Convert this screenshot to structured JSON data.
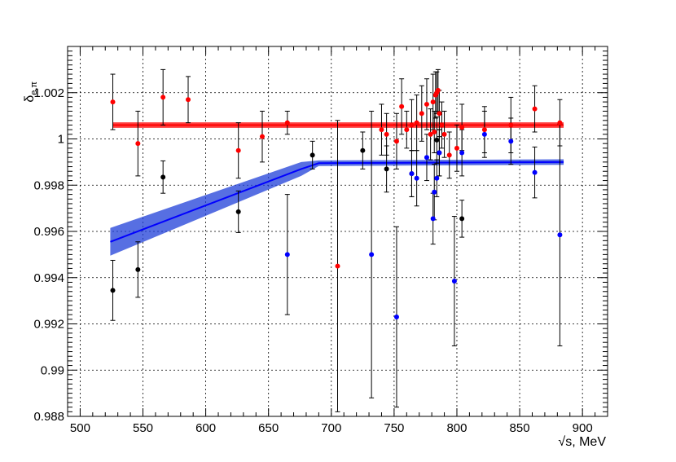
{
  "chart_data": {
    "type": "scatter",
    "title": "",
    "xlabel": "√s, MeV",
    "ylabel": "δe,π",
    "ylabel_main": "δ",
    "ylabel_sub": "e,π",
    "xlim": [
      490,
      920
    ],
    "ylim": [
      0.988,
      1.004
    ],
    "x_ticks": [
      500,
      550,
      600,
      650,
      700,
      750,
      800,
      850,
      900
    ],
    "x_tick_labels": [
      "500",
      "550",
      "600",
      "650",
      "700",
      "750",
      "800",
      "850",
      "900"
    ],
    "y_ticks": [
      0.988,
      0.99,
      0.992,
      0.994,
      0.996,
      0.998,
      1.0,
      1.002
    ],
    "y_tick_labels": [
      "0.988",
      "0.99",
      "0.992",
      "0.994",
      "0.996",
      "0.998",
      "1",
      "1.002"
    ],
    "grid": true,
    "colors": {
      "red": "#ff0000",
      "blue": "#0000ff",
      "black": "#000000",
      "band_blue": "#1f3fd8"
    },
    "fits": [
      {
        "color": "red",
        "x": [
          526,
          885
        ],
        "y": [
          1.0006,
          1.0006
        ],
        "band": 0.00012
      },
      {
        "color": "blue",
        "x": [
          524,
          676,
          690,
          885
        ],
        "y": [
          0.99555,
          0.9987,
          0.99895,
          0.999
        ],
        "band": [
          0.0006,
          0.0003,
          0.00012,
          0.00012
        ]
      }
    ],
    "series": [
      {
        "color": "red",
        "points": [
          {
            "x": 526,
            "y": 1.0016,
            "err": 0.0012
          },
          {
            "x": 546,
            "y": 0.9998,
            "err": 0.0014
          },
          {
            "x": 566,
            "y": 1.0018,
            "err": 0.0012
          },
          {
            "x": 586,
            "y": 1.0017,
            "err": 0.001
          },
          {
            "x": 626,
            "y": 0.9995,
            "err": 0.0012
          },
          {
            "x": 645,
            "y": 1.0001,
            "err": 0.0011
          },
          {
            "x": 665,
            "y": 1.0007,
            "err": 0.0005
          },
          {
            "x": 705,
            "y": 0.9945,
            "err": 0.0063
          },
          {
            "x": 740,
            "y": 1.0004,
            "err": 0.0011
          },
          {
            "x": 744,
            "y": 1.0002,
            "err": 0.0009
          },
          {
            "x": 752,
            "y": 0.9999,
            "err": 0.0012
          },
          {
            "x": 756,
            "y": 1.0014,
            "err": 0.0012
          },
          {
            "x": 760,
            "y": 1.0004,
            "err": 0.0008
          },
          {
            "x": 764,
            "y": 1.0006,
            "err": 0.0011
          },
          {
            "x": 768,
            "y": 1.0007,
            "err": 0.0012
          },
          {
            "x": 772,
            "y": 1.0011,
            "err": 0.0012
          },
          {
            "x": 776,
            "y": 1.0015,
            "err": 0.0011
          },
          {
            "x": 779,
            "y": 1.0002,
            "err": 0.0011
          },
          {
            "x": 781,
            "y": 1.0016,
            "err": 0.0012
          },
          {
            "x": 782,
            "y": 1.0003,
            "err": 0.0009
          },
          {
            "x": 783,
            "y": 1.0019,
            "err": 0.001
          },
          {
            "x": 784,
            "y": 1.002,
            "err": 0.0009
          },
          {
            "x": 785,
            "y": 1.0021,
            "err": 0.0009
          },
          {
            "x": 786,
            "y": 1.0011,
            "err": 0.001
          },
          {
            "x": 788,
            "y": 1.0006,
            "err": 0.001
          },
          {
            "x": 790,
            "y": 1.0002,
            "err": 0.001
          },
          {
            "x": 794,
            "y": 0.9993,
            "err": 0.001
          },
          {
            "x": 800,
            "y": 0.9996,
            "err": 0.001
          },
          {
            "x": 804,
            "y": 1.0005,
            "err": 0.001
          },
          {
            "x": 822,
            "y": 1.0004,
            "err": 0.001
          },
          {
            "x": 843,
            "y": 1.0006,
            "err": 0.0012
          },
          {
            "x": 862,
            "y": 1.0013,
            "err": 0.001
          },
          {
            "x": 882,
            "y": 1.0007,
            "err": 0.001
          }
        ]
      },
      {
        "color": "black",
        "points": [
          {
            "x": 526,
            "y": 0.99345,
            "err": 0.0013
          },
          {
            "x": 546,
            "y": 0.99435,
            "err": 0.0012
          },
          {
            "x": 566,
            "y": 0.99835,
            "err": 0.0007
          },
          {
            "x": 626,
            "y": 0.99685,
            "err": 0.0009
          },
          {
            "x": 685,
            "y": 0.9993,
            "err": 0.0006
          },
          {
            "x": 725,
            "y": 0.9995,
            "err": 0.0008
          },
          {
            "x": 744,
            "y": 0.9987,
            "err": 0.001
          },
          {
            "x": 764,
            "y": 0.9985,
            "err": 0.001
          },
          {
            "x": 784,
            "y": 0.99995,
            "err": 0.001
          },
          {
            "x": 786,
            "y": 0.9994,
            "err": 0.001
          },
          {
            "x": 804,
            "y": 0.99655,
            "err": 0.0008
          }
        ]
      },
      {
        "color": "blue",
        "points": [
          {
            "x": 665,
            "y": 0.995,
            "err": 0.0026
          },
          {
            "x": 732,
            "y": 0.995,
            "err": 0.0062
          },
          {
            "x": 752,
            "y": 0.9923,
            "err": 0.0039
          },
          {
            "x": 764,
            "y": 0.9985,
            "err": 0.001
          },
          {
            "x": 768,
            "y": 0.9983,
            "err": 0.0012
          },
          {
            "x": 776,
            "y": 0.9992,
            "err": 0.001
          },
          {
            "x": 781,
            "y": 0.99655,
            "err": 0.0011
          },
          {
            "x": 782,
            "y": 0.9977,
            "err": 0.0012
          },
          {
            "x": 784,
            "y": 0.9983,
            "err": 0.0008
          },
          {
            "x": 786,
            "y": 0.9994,
            "err": 0.001
          },
          {
            "x": 798,
            "y": 0.99385,
            "err": 0.0028
          },
          {
            "x": 804,
            "y": 0.9994,
            "err": 0.001
          },
          {
            "x": 822,
            "y": 1.0002,
            "err": 0.001
          },
          {
            "x": 843,
            "y": 0.9999,
            "err": 0.001
          },
          {
            "x": 862,
            "y": 0.99855,
            "err": 0.0011
          },
          {
            "x": 882,
            "y": 0.99585,
            "err": 0.0048
          }
        ]
      }
    ]
  }
}
